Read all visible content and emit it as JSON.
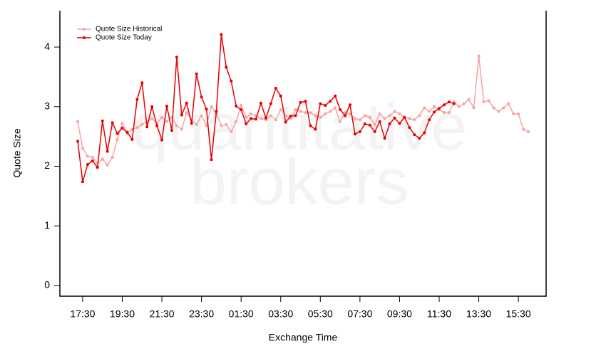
{
  "chart_data": {
    "type": "line",
    "watermark": [
      "quantitative",
      "brokers"
    ],
    "y_label": "Quote Size",
    "x_label": "Exchange Time",
    "categories": [
      null,
      "17:30",
      null,
      null,
      null,
      null,
      null,
      null,
      null,
      "19:30",
      null,
      null,
      null,
      null,
      null,
      null,
      null,
      "21:30",
      null,
      null,
      null,
      null,
      null,
      null,
      null,
      "23:30",
      null,
      null,
      null,
      null,
      null,
      null,
      null,
      "01:30",
      null,
      null,
      null,
      null,
      null,
      null,
      null,
      "03:30",
      null,
      null,
      null,
      null,
      null,
      null,
      null,
      "05:30",
      null,
      null,
      null,
      null,
      null,
      null,
      null,
      "07:30",
      null,
      null,
      null,
      null,
      null,
      null,
      null,
      "09:30",
      null,
      null,
      null,
      null,
      null,
      null,
      null,
      "11:30",
      null,
      null,
      null,
      null,
      null,
      null,
      null,
      "13:30",
      null,
      null,
      null,
      null,
      null,
      null,
      null,
      "15:30",
      null,
      null
    ],
    "series": [
      {
        "name": "Quote Size Historical",
        "color": "#f7a3a3",
        "values": [
          2.75,
          2.3,
          2.17,
          2.15,
          2.05,
          2.12,
          2.02,
          2.15,
          2.45,
          2.72,
          2.55,
          2.62,
          2.65,
          2.7,
          2.75,
          2.8,
          2.72,
          2.82,
          2.75,
          2.82,
          2.68,
          2.62,
          2.9,
          2.78,
          2.7,
          2.85,
          2.68,
          3.0,
          2.88,
          2.68,
          2.7,
          2.58,
          2.75,
          3.02,
          2.82,
          2.88,
          2.85,
          2.8,
          2.78,
          2.85,
          2.78,
          2.95,
          2.85,
          2.8,
          2.95,
          2.92,
          2.9,
          2.9,
          2.85,
          2.82,
          2.88,
          2.92,
          2.98,
          2.75,
          2.9,
          2.88,
          2.8,
          2.78,
          2.85,
          2.82,
          2.7,
          2.88,
          2.8,
          2.85,
          2.92,
          2.88,
          2.82,
          2.8,
          2.78,
          2.85,
          2.98,
          2.92,
          3.0,
          2.95,
          2.9,
          2.9,
          3.08,
          3.0,
          3.05,
          3.12,
          2.98,
          3.85,
          3.08,
          3.1,
          2.98,
          2.92,
          2.98,
          3.05,
          2.88,
          2.88,
          2.62,
          2.58
        ]
      },
      {
        "name": "Quote Size Today",
        "color": "#e80000",
        "values": [
          2.42,
          1.74,
          2.03,
          2.09,
          1.98,
          2.76,
          2.25,
          2.73,
          2.55,
          2.64,
          2.57,
          2.45,
          3.12,
          3.4,
          2.66,
          3.0,
          2.68,
          2.44,
          3.01,
          2.6,
          3.83,
          2.86,
          3.06,
          2.72,
          3.55,
          3.16,
          2.96,
          2.11,
          2.92,
          4.21,
          3.66,
          3.43,
          3.01,
          2.95,
          2.71,
          2.8,
          2.79,
          3.06,
          2.81,
          3.05,
          3.31,
          3.18,
          2.74,
          2.84,
          2.85,
          3.07,
          3.09,
          2.68,
          2.62,
          3.05,
          3.02,
          3.09,
          3.18,
          2.95,
          2.85,
          3.03,
          2.54,
          2.58,
          2.71,
          2.69,
          2.58,
          2.75,
          2.47,
          2.71,
          2.81,
          2.72,
          2.82,
          2.65,
          2.53,
          2.47,
          2.56,
          2.78,
          2.91,
          2.97,
          3.03,
          3.08,
          3.05,
          null,
          null,
          null,
          null,
          null,
          null,
          null,
          null,
          null,
          null,
          null,
          null,
          null,
          null,
          null
        ]
      }
    ],
    "ylim": [
      -0.18,
      4.61
    ],
    "yticks": [
      0,
      1,
      2,
      3,
      4
    ],
    "legend": "top-left",
    "markers": true
  }
}
